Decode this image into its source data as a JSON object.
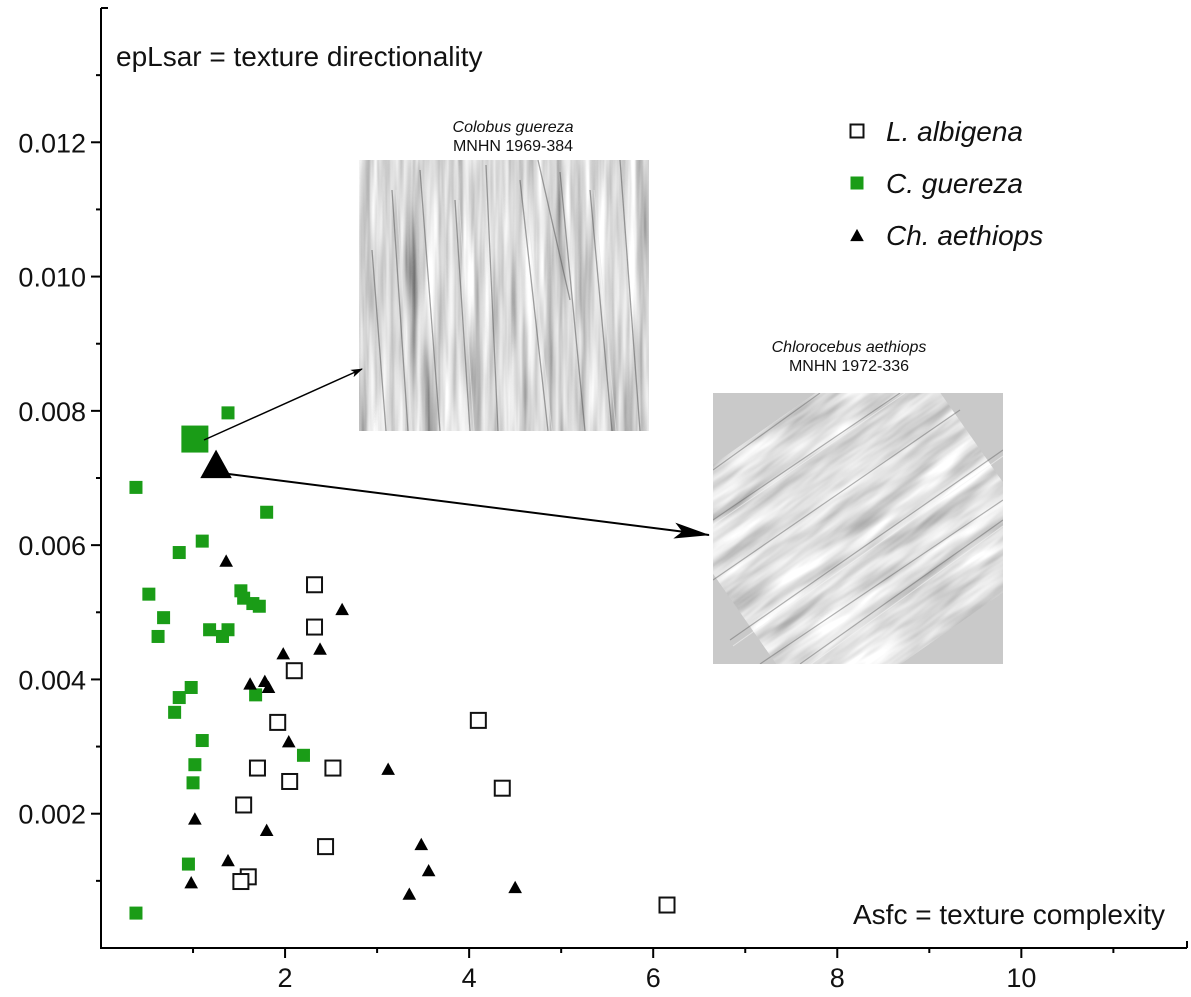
{
  "chart_data": {
    "type": "scatter",
    "title": "",
    "xlabel": "Asfc = texture complexity",
    "ylabel": "epLsar = texture directionality",
    "xlim": [
      0,
      11.8
    ],
    "ylim": [
      0,
      0.014
    ],
    "x_ticks": [
      2,
      4,
      6,
      8,
      10
    ],
    "x_tick_labels": [
      "2",
      "4",
      "6",
      "8",
      "10"
    ],
    "y_ticks": [
      0.002,
      0.004,
      0.006,
      0.008,
      0.01,
      0.012
    ],
    "y_tick_labels": [
      "0.002",
      "0.004",
      "0.006",
      "0.008",
      "0.010",
      "0.012"
    ],
    "grid": false,
    "legend_position": "top-right",
    "series": [
      {
        "name": "L. albigena",
        "marker": "square-open",
        "color": "#111111",
        "points": [
          [
            2.32,
            0.00541
          ],
          [
            2.32,
            0.00478
          ],
          [
            2.1,
            0.00413
          ],
          [
            4.1,
            0.00339
          ],
          [
            1.92,
            0.00336
          ],
          [
            1.7,
            0.00268
          ],
          [
            2.05,
            0.00248
          ],
          [
            2.52,
            0.00268
          ],
          [
            4.36,
            0.00238
          ],
          [
            1.55,
            0.00213
          ],
          [
            2.44,
            0.00151
          ],
          [
            1.6,
            0.00106
          ],
          [
            1.52,
            0.00099
          ],
          [
            6.15,
            0.00064
          ]
        ]
      },
      {
        "name": "C. guereza",
        "marker": "square-filled",
        "color": "#1a9c17",
        "points": [
          [
            1.38,
            0.00797
          ],
          [
            0.38,
            0.00686
          ],
          [
            1.8,
            0.00649
          ],
          [
            1.1,
            0.00606
          ],
          [
            0.85,
            0.00589
          ],
          [
            1.52,
            0.00532
          ],
          [
            1.55,
            0.00521
          ],
          [
            1.65,
            0.00513
          ],
          [
            1.72,
            0.00509
          ],
          [
            0.52,
            0.00527
          ],
          [
            0.68,
            0.00492
          ],
          [
            0.62,
            0.00464
          ],
          [
            1.18,
            0.00474
          ],
          [
            1.32,
            0.00464
          ],
          [
            1.38,
            0.00474
          ],
          [
            0.98,
            0.00388
          ],
          [
            0.85,
            0.00373
          ],
          [
            1.68,
            0.00377
          ],
          [
            0.8,
            0.00351
          ],
          [
            1.1,
            0.00309
          ],
          [
            1.02,
            0.00273
          ],
          [
            2.2,
            0.00287
          ],
          [
            1.0,
            0.00246
          ],
          [
            0.95,
            0.00125
          ],
          [
            0.38,
            0.00052
          ]
        ]
      },
      {
        "name": "Ch. aethiops",
        "marker": "triangle-filled",
        "color": "#000000",
        "points": [
          [
            1.36,
            0.00577
          ],
          [
            2.62,
            0.00505
          ],
          [
            2.38,
            0.00446
          ],
          [
            1.98,
            0.00439
          ],
          [
            1.62,
            0.00394
          ],
          [
            1.78,
            0.00398
          ],
          [
            1.82,
            0.00389
          ],
          [
            2.04,
            0.00308
          ],
          [
            3.12,
            0.00267
          ],
          [
            1.02,
            0.00193
          ],
          [
            1.8,
            0.00176
          ],
          [
            3.48,
            0.00155
          ],
          [
            1.38,
            0.00131
          ],
          [
            3.56,
            0.00116
          ],
          [
            0.98,
            0.00098
          ],
          [
            3.35,
            0.00081
          ],
          [
            4.5,
            0.00091
          ]
        ]
      }
    ],
    "highlighted": [
      {
        "series": "C. guereza",
        "x": 1.02,
        "y": 0.00758,
        "inset": 0
      },
      {
        "series": "Ch. aethiops",
        "x": 1.25,
        "y": 0.00721,
        "inset": 1
      }
    ],
    "insets": [
      {
        "title": "Colobus guereza",
        "subtitle": "MNHN 1969-384",
        "image": "wear-surface-micrograph",
        "texture": "vertical-striations"
      },
      {
        "title": "Chlorocebus aethiops",
        "subtitle": "MNHN 1972-336",
        "image": "wear-surface-micrograph",
        "texture": "diagonal-striations"
      }
    ]
  }
}
